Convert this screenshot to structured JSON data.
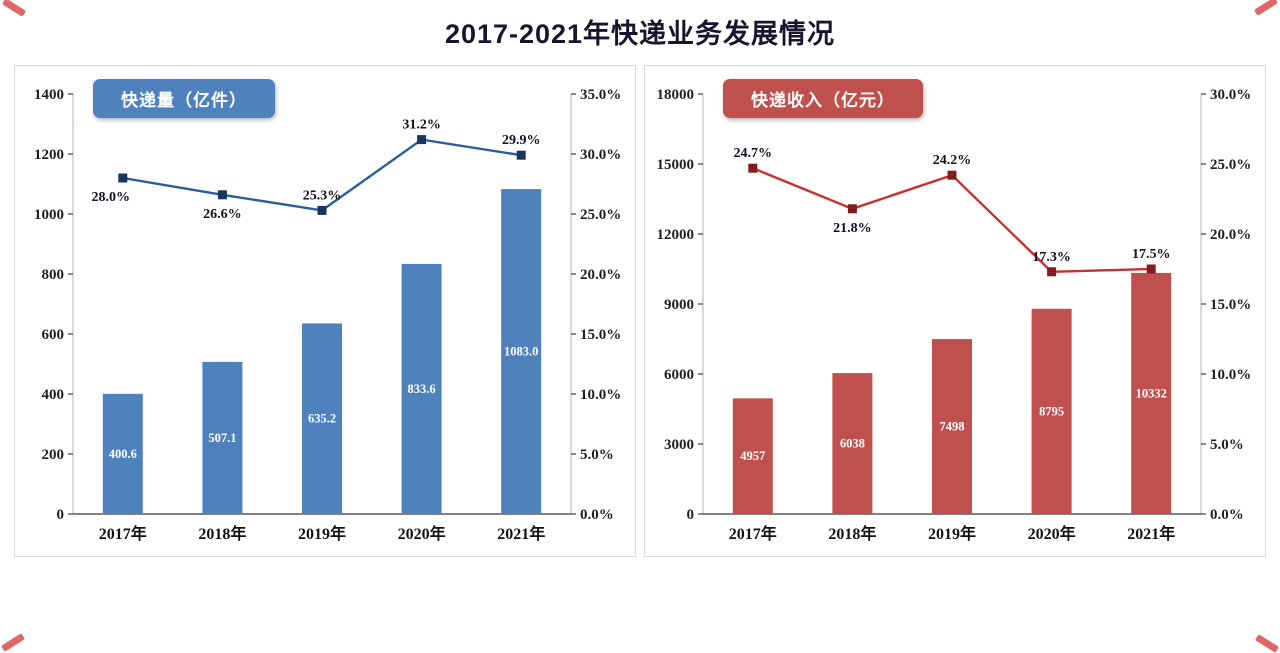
{
  "page": {
    "title": "2017-2021年快递业务发展情况"
  },
  "chart_data": [
    {
      "type": "bar",
      "legend": "快递量（亿件）",
      "categories": [
        "2017年",
        "2018年",
        "2019年",
        "2020年",
        "2021年"
      ],
      "bars": {
        "values": [
          400.6,
          507.1,
          635.2,
          833.6,
          1083.0
        ],
        "labels": [
          "400.6",
          "507.1",
          "635.2",
          "833.6",
          "1083.0"
        ]
      },
      "line": {
        "values": [
          28.0,
          26.6,
          25.3,
          31.2,
          29.9
        ],
        "labels": [
          "28.0%",
          "26.6%",
          "25.3%",
          "31.2%",
          "29.9%"
        ],
        "label_pos": [
          "below",
          "below",
          "above",
          "above",
          "above"
        ],
        "label_dx": [
          -12,
          0,
          0,
          0,
          0
        ]
      },
      "left_axis": {
        "min": 0,
        "max": 1400,
        "step": 200
      },
      "right_axis": {
        "min": 0,
        "max": 35,
        "step": 5,
        "decimals": 1,
        "suffix": "%"
      },
      "layout": {
        "grid": false,
        "legend_position": "top-left"
      },
      "colors": {
        "bar": "#4f81bd",
        "line": "#2b5d9b",
        "marker": "#17375e",
        "legend_bg": "#4f81bd"
      }
    },
    {
      "type": "bar",
      "legend": "快递收入（亿元）",
      "categories": [
        "2017年",
        "2018年",
        "2019年",
        "2020年",
        "2021年"
      ],
      "bars": {
        "values": [
          4957,
          6038,
          7498,
          8795,
          10332
        ],
        "labels": [
          "4957",
          "6038",
          "7498",
          "8795",
          "10332"
        ]
      },
      "line": {
        "values": [
          24.7,
          21.8,
          24.2,
          17.3,
          17.5
        ],
        "labels": [
          "24.7%",
          "21.8%",
          "24.2%",
          "17.3%",
          "17.5%"
        ],
        "label_pos": [
          "above",
          "below",
          "above",
          "above",
          "above"
        ],
        "label_dx": [
          0,
          0,
          0,
          0,
          0
        ]
      },
      "left_axis": {
        "min": 0,
        "max": 18000,
        "step": 3000
      },
      "right_axis": {
        "min": 0,
        "max": 30,
        "step": 5,
        "decimals": 1,
        "suffix": "%"
      },
      "layout": {
        "grid": false,
        "legend_position": "top-left"
      },
      "colors": {
        "bar": "#c0504d",
        "line": "#c82f2f",
        "marker": "#7f1d1d",
        "legend_bg": "#c0504d"
      }
    }
  ]
}
